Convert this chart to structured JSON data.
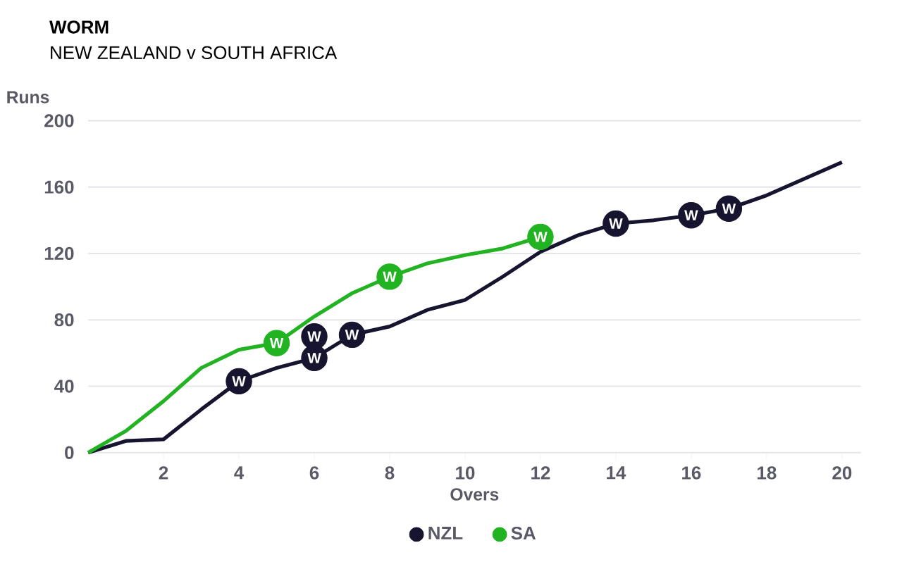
{
  "chart_data": {
    "type": "line",
    "title": "WORM",
    "subtitle": "NEW ZEALAND v SOUTH AFRICA",
    "xlabel": "Overs",
    "ylabel": "Runs",
    "x": [
      0,
      1,
      2,
      3,
      4,
      5,
      6,
      7,
      8,
      9,
      10,
      11,
      12,
      13,
      14,
      15,
      16,
      17,
      18,
      19,
      20
    ],
    "series": [
      {
        "name": "NZL",
        "color": "#16142e",
        "values": [
          0,
          7,
          8,
          26,
          43,
          51,
          57,
          71,
          76,
          86,
          92,
          106,
          121,
          131,
          138,
          140,
          143,
          147,
          155,
          165,
          175
        ]
      },
      {
        "name": "SA",
        "color": "#22b322",
        "values": [
          0,
          13,
          31,
          51,
          62,
          66,
          82,
          96,
          106,
          114,
          119,
          123,
          130,
          null,
          null,
          null,
          null,
          null,
          null,
          null,
          null
        ]
      },
      {
        "type": "scatter",
        "color": "#16142e",
        "x": [
          4,
          6,
          6,
          7,
          14,
          16,
          17
        ],
        "values": [
          43,
          57,
          70,
          71,
          138,
          143,
          147
        ],
        "value_labels": [
          "W",
          "W",
          "W",
          "W",
          "W",
          "W",
          "W"
        ]
      },
      {
        "type": "scatter",
        "color": "#22b322",
        "x": [
          5,
          8,
          12
        ],
        "values": [
          66,
          106,
          130
        ],
        "value_labels": [
          "W",
          "W",
          "W"
        ]
      }
    ],
    "line_style": "solid",
    "xlim": [
      0,
      20.5
    ],
    "ylim": [
      0,
      200
    ],
    "xticks": [
      2,
      4,
      6,
      8,
      10,
      12,
      14,
      16,
      18,
      20
    ],
    "yticks": [
      0,
      40,
      80,
      120,
      160,
      200
    ],
    "grid": "y",
    "legend": "bottom"
  }
}
